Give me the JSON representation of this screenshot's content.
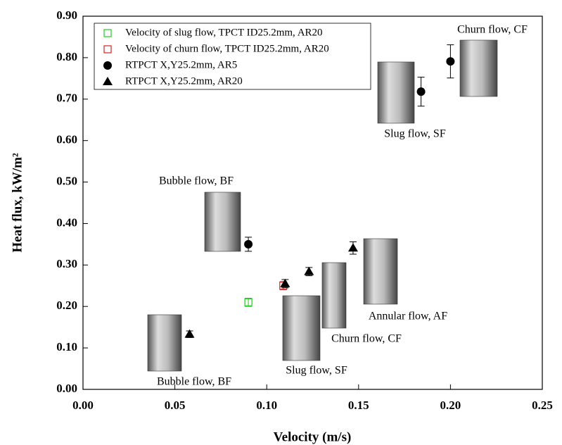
{
  "chart_data": {
    "type": "scatter",
    "x_label": "Velocity (m/s)",
    "y_label": "Heat flux, kW/m²",
    "xlim": [
      0,
      0.25
    ],
    "xticks": [
      {
        "value": 0,
        "label": "0.00"
      },
      {
        "value": 0.05,
        "label": "0.05"
      },
      {
        "value": 0.1,
        "label": "0.10"
      },
      {
        "value": 0.15,
        "label": "0.15"
      },
      {
        "value": 0.2,
        "label": "0.20"
      },
      {
        "value": 0.25,
        "label": "0.25"
      }
    ],
    "ylim": [
      0,
      0.9
    ],
    "yticks": [
      {
        "value": 0,
        "label": "0.00"
      },
      {
        "value": 0.1,
        "label": "0.10"
      },
      {
        "value": 0.2,
        "label": "0.20"
      },
      {
        "value": 0.3,
        "label": "0.30"
      },
      {
        "value": 0.4,
        "label": "0.40"
      },
      {
        "value": 0.5,
        "label": "0.50"
      },
      {
        "value": 0.6,
        "label": "0.60"
      },
      {
        "value": 0.7,
        "label": "0.70"
      },
      {
        "value": 0.8,
        "label": "0.80"
      },
      {
        "value": 0.9,
        "label": "0.90"
      }
    ],
    "legend": "upper left",
    "series": [
      {
        "name": "Velocity of slug flow, TPCT ID25.2mm, AR20",
        "color": "#22cc22",
        "marker": "open-square",
        "x": [
          0.09
        ],
        "values": [
          0.21
        ],
        "errors": [
          0.01
        ]
      },
      {
        "name": "Velocity of churn flow, TPCT ID25.2mm, AR20",
        "color": "#dd2222",
        "marker": "open-square",
        "x": [
          0.109
        ],
        "values": [
          0.25
        ],
        "errors": [
          0.01
        ]
      },
      {
        "name": "RTPCT X,Y25.2mm, AR5",
        "color": "#000000",
        "marker": "circle",
        "x": [
          0.09,
          0.184,
          0.2
        ],
        "values": [
          0.35,
          0.718,
          0.791
        ],
        "errors": [
          0.017,
          0.035,
          0.04
        ]
      },
      {
        "name": "RTPCT X,Y25.2mm, AR20",
        "color": "#000000",
        "marker": "triangle",
        "x": [
          0.058,
          0.11,
          0.123,
          0.147
        ],
        "values": [
          0.133,
          0.255,
          0.284,
          0.341
        ],
        "errors": [
          0.008,
          0.01,
          0.01,
          0.015
        ]
      }
    ],
    "annotations": [
      "Bubble flow, BF",
      "Bubble flow, BF",
      "Slug flow, SF",
      "Churn flow, CF",
      "Annular flow, AF",
      "Slug flow, SF",
      "Churn flow, CF"
    ]
  }
}
